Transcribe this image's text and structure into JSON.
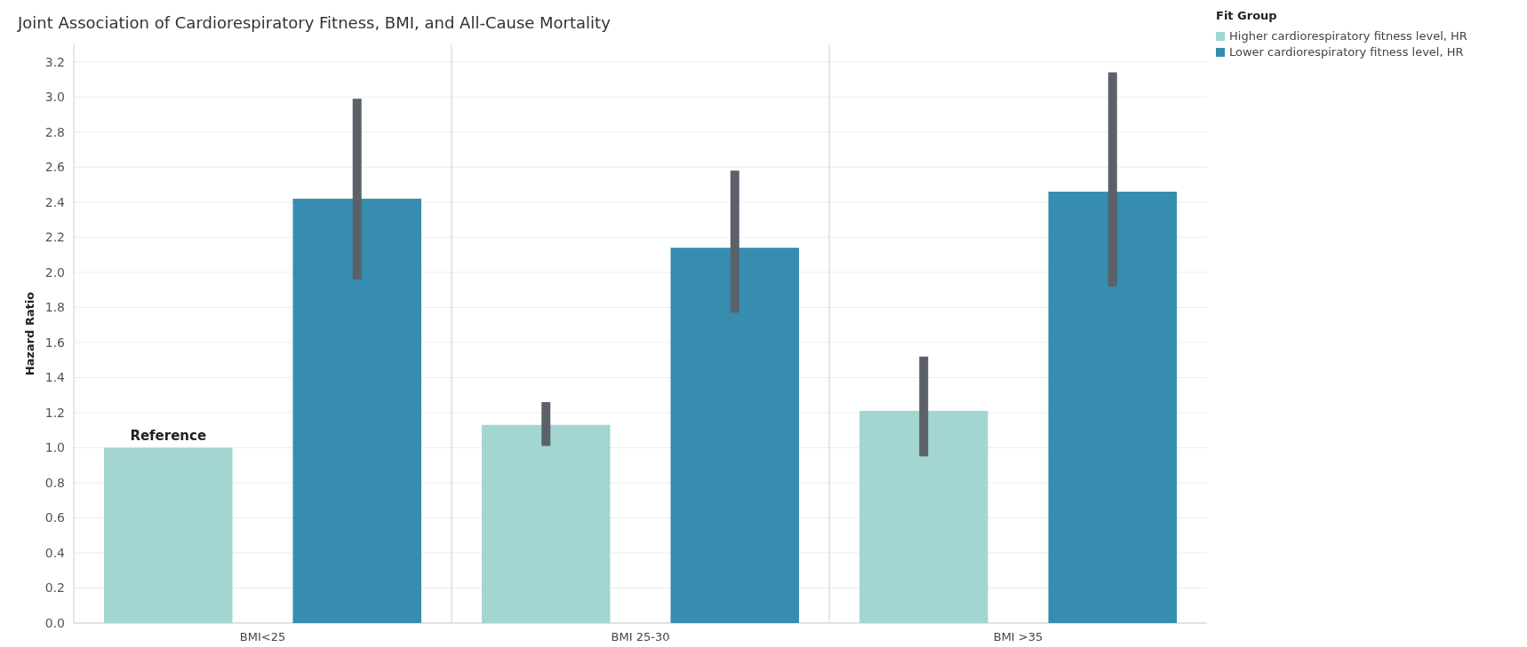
{
  "chart_data": {
    "type": "bar",
    "title": "Joint Association of Cardiorespiratory Fitness, BMI, and All-Cause Mortality",
    "ylabel": "Hazard Ratio",
    "legend_title": "Fit Group",
    "categories": [
      "BMI<25",
      "BMI 25-30",
      "BMI >35"
    ],
    "series": [
      {
        "name": "Higher cardiorespiratory fitness level, HR",
        "color": "#a3d5d1",
        "values": [
          1.0,
          1.13,
          1.21
        ],
        "errors": [
          null,
          [
            1.01,
            1.26
          ],
          [
            0.95,
            1.52
          ]
        ]
      },
      {
        "name": "Lower cardiorespiratory fitness level, HR",
        "color": "#368daf",
        "values": [
          2.42,
          2.14,
          2.46
        ],
        "errors": [
          [
            1.96,
            2.99
          ],
          [
            1.77,
            2.58
          ],
          [
            1.92,
            3.14
          ]
        ]
      }
    ],
    "ylim": [
      0,
      3.3
    ],
    "yticks": [
      {
        "value": 0,
        "label": "0.0"
      },
      0.2,
      0.4,
      0.6,
      0.8,
      {
        "value": 1,
        "label": "1.0"
      },
      1.2,
      1.4,
      1.6,
      1.8,
      {
        "value": 2,
        "label": "2.0"
      },
      2.2,
      2.4,
      2.6,
      2.8,
      {
        "value": 3,
        "label": "3.0"
      },
      3.2
    ],
    "grid": "y",
    "legend": "top right",
    "annotations": [
      "Reference"
    ]
  }
}
